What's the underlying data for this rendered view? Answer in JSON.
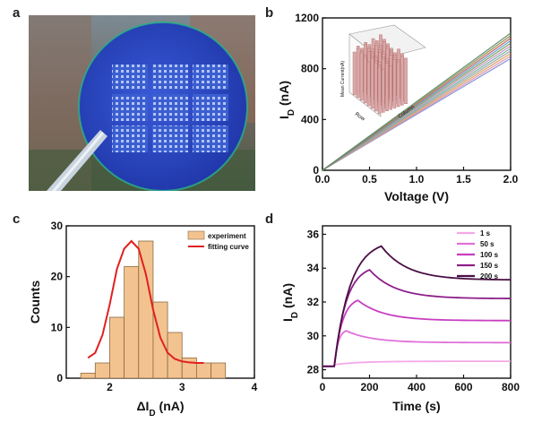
{
  "panels": {
    "a": {
      "letter": "a"
    },
    "b": {
      "letter": "b"
    },
    "c": {
      "letter": "c"
    },
    "d": {
      "letter": "d"
    }
  },
  "colors": {
    "wafer": "#2f4fc6",
    "histogram_fill": "#f3c38f",
    "histogram_edge": "#8a6a45",
    "fit_curve": "#e02020"
  },
  "chart_data": [
    {
      "panel": "b",
      "type": "line",
      "xlabel": "Voltage (V)",
      "ylabel_main": "I",
      "ylabel_sub": "D",
      "ylabel_unit": " (nA)",
      "xlim": [
        0.0,
        2.0
      ],
      "ylim": [
        0,
        1200
      ],
      "xticks": [
        "0.0",
        "0.5",
        "1.0",
        "1.5",
        "2.0"
      ],
      "yticks": [
        "0",
        "400",
        "800",
        "1200"
      ],
      "x": [
        0.0,
        2.0
      ],
      "series_end_values": [
        880,
        900,
        920,
        940,
        960,
        980,
        1000,
        1020,
        1040,
        1060,
        1080
      ],
      "series_colors": [
        "#7d8fd8",
        "#e08aa0",
        "#d8a060",
        "#a0a0a0",
        "#6ab0a0",
        "#c890c8",
        "#80a050",
        "#5a9ad0",
        "#c06060",
        "#909050",
        "#5a8a6a"
      ],
      "inset": {
        "type": "bar3d",
        "ylabel": "Mean Current(nA)",
        "xlabel": "Row",
        "zlabel": "Column",
        "color": "#d9a8a8"
      }
    },
    {
      "panel": "c",
      "type": "bar",
      "xlabel_main": "ΔI",
      "xlabel_sub": "D",
      "xlabel_unit": " (nA)",
      "ylabel": "Counts",
      "xlim": [
        1.4,
        4.0
      ],
      "ylim": [
        0,
        30
      ],
      "xticks": [
        "2",
        "3",
        "4"
      ],
      "yticks": [
        "0",
        "10",
        "20",
        "30"
      ],
      "bin_edges": [
        1.6,
        1.8,
        2.0,
        2.2,
        2.4,
        2.6,
        2.8,
        3.0,
        3.2,
        3.4,
        3.6
      ],
      "counts": [
        1,
        3,
        12,
        22,
        27,
        15,
        9,
        4,
        3,
        3
      ],
      "fit_curve": {
        "x": [
          1.7,
          1.8,
          1.9,
          2.0,
          2.1,
          2.2,
          2.3,
          2.4,
          2.5,
          2.6,
          2.7,
          2.8,
          2.9,
          3.0,
          3.1,
          3.2,
          3.3
        ],
        "y": [
          4.0,
          5.0,
          8.5,
          14.5,
          21.5,
          25.5,
          27.0,
          25.5,
          20.5,
          13.5,
          8.0,
          5.0,
          3.8,
          3.3,
          3.1,
          3.0,
          3.0
        ]
      },
      "legend": {
        "experiment": "experiment",
        "fit": "fitting curve"
      }
    },
    {
      "panel": "d",
      "type": "line",
      "xlabel": "Time (s)",
      "ylabel_main": "I",
      "ylabel_sub": "D",
      "ylabel_unit": " (nA)",
      "xlim": [
        0,
        800
      ],
      "ylim": [
        27.5,
        36.5
      ],
      "xticks": [
        "0",
        "200",
        "400",
        "600",
        "800"
      ],
      "yticks": [
        "28",
        "30",
        "32",
        "34",
        "36"
      ],
      "baseline": 28.2,
      "start_time": 50,
      "series": [
        {
          "name": "1 s",
          "peak": 28.3,
          "final": 28.5,
          "duration": 1,
          "color": "#f4a8e8"
        },
        {
          "name": "50 s",
          "peak": 30.3,
          "final": 29.6,
          "duration": 50,
          "color": "#e070d8"
        },
        {
          "name": "100 s",
          "peak": 32.1,
          "final": 30.9,
          "duration": 100,
          "color": "#c83ec0"
        },
        {
          "name": "150 s",
          "peak": 33.9,
          "final": 32.2,
          "duration": 150,
          "color": "#8e1f8a"
        },
        {
          "name": "200 s",
          "peak": 35.3,
          "final": 33.3,
          "duration": 200,
          "color": "#4a0f44"
        }
      ]
    }
  ]
}
